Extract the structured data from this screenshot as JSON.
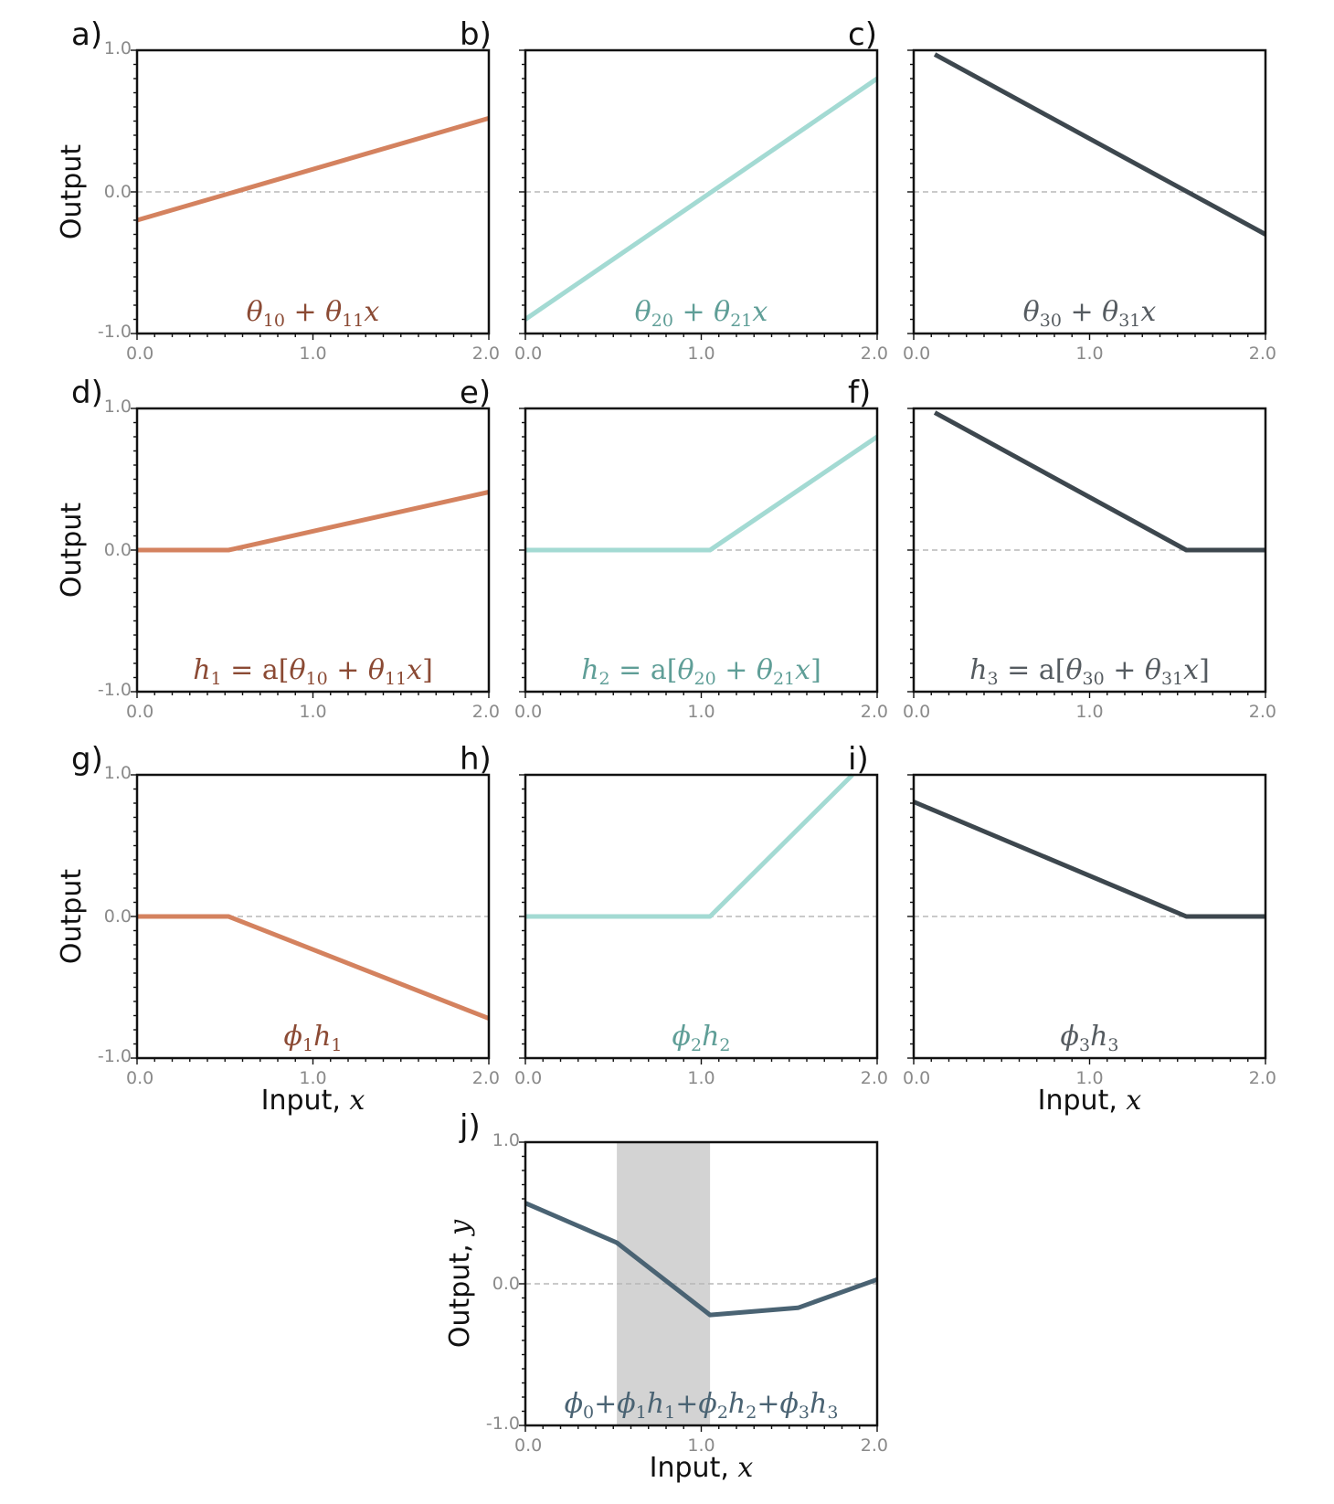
{
  "chart_data": [
    {
      "id": "a",
      "type": "line",
      "letter": "a)",
      "ylabel": "Output",
      "xlabel": "",
      "color": "#d4825f",
      "label_color": "#8b4a34",
      "formula": [
        {
          "t": "θ",
          "i": true
        },
        {
          "t": "10",
          "sub": true
        },
        {
          "t": " + ",
          "i": false
        },
        {
          "t": "θ",
          "i": true
        },
        {
          "t": "11",
          "sub": true
        },
        {
          "t": "x",
          "i": true
        }
      ],
      "x": [
        0,
        2
      ],
      "y": [
        -0.2,
        0.52
      ],
      "xlim": [
        0,
        2
      ],
      "ylim": [
        -1,
        1
      ],
      "xticklabels": [
        "0.0",
        "1.0",
        "2.0"
      ],
      "yticklabels": [
        "-1.0",
        "0.0",
        "1.0"
      ],
      "shade": null
    },
    {
      "id": "b",
      "type": "line",
      "letter": "b)",
      "ylabel": "",
      "xlabel": "",
      "color": "#a3dad3",
      "label_color": "#5f9e97",
      "formula": [
        {
          "t": "θ",
          "i": true
        },
        {
          "t": "20",
          "sub": true
        },
        {
          "t": " + ",
          "i": false
        },
        {
          "t": "θ",
          "i": true
        },
        {
          "t": "21",
          "sub": true
        },
        {
          "t": "x",
          "i": true
        }
      ],
      "x": [
        0,
        2
      ],
      "y": [
        -0.9,
        0.8
      ],
      "xlim": [
        0,
        2
      ],
      "ylim": [
        -1,
        1
      ],
      "xticklabels": [
        "0.0",
        "1.0",
        "2.0"
      ],
      "yticklabels": [],
      "shade": null
    },
    {
      "id": "c",
      "type": "line",
      "letter": "c)",
      "ylabel": "",
      "xlabel": "",
      "color": "#3d474e",
      "label_color": "#555b60",
      "formula": [
        {
          "t": "θ",
          "i": true
        },
        {
          "t": "30",
          "sub": true
        },
        {
          "t": " + ",
          "i": false
        },
        {
          "t": "θ",
          "i": true
        },
        {
          "t": "31",
          "sub": true
        },
        {
          "t": "x",
          "i": true
        }
      ],
      "x": [
        0.12,
        2
      ],
      "y": [
        0.97,
        -0.3
      ],
      "xlim": [
        0,
        2
      ],
      "ylim": [
        -1,
        1
      ],
      "xticklabels": [
        "0.0",
        "1.0",
        "2.0"
      ],
      "yticklabels": [],
      "shade": null
    },
    {
      "id": "d",
      "type": "line",
      "letter": "d)",
      "ylabel": "Output",
      "xlabel": "",
      "color": "#d4825f",
      "label_color": "#8b4a34",
      "formula": [
        {
          "t": "h",
          "i": true
        },
        {
          "t": "1",
          "sub": true
        },
        {
          "t": " = ",
          "i": false
        },
        {
          "t": "a[",
          "r": true
        },
        {
          "t": "θ",
          "i": true
        },
        {
          "t": "10",
          "sub": true
        },
        {
          "t": " + ",
          "i": false
        },
        {
          "t": "θ",
          "i": true
        },
        {
          "t": "11",
          "sub": true
        },
        {
          "t": "x",
          "i": true
        },
        {
          "t": "]",
          "r": true
        }
      ],
      "x": [
        0,
        0.52,
        2
      ],
      "y": [
        0,
        0,
        0.41
      ],
      "xlim": [
        0,
        2
      ],
      "ylim": [
        -1,
        1
      ],
      "xticklabels": [
        "0.0",
        "1.0",
        "2.0"
      ],
      "yticklabels": [
        "-1.0",
        "0.0",
        "1.0"
      ],
      "shade": null
    },
    {
      "id": "e",
      "type": "line",
      "letter": "e)",
      "ylabel": "",
      "xlabel": "",
      "color": "#a3dad3",
      "label_color": "#5f9e97",
      "formula": [
        {
          "t": "h",
          "i": true
        },
        {
          "t": "2",
          "sub": true
        },
        {
          "t": " = ",
          "i": false
        },
        {
          "t": "a[",
          "r": true
        },
        {
          "t": "θ",
          "i": true
        },
        {
          "t": "20",
          "sub": true
        },
        {
          "t": " + ",
          "i": false
        },
        {
          "t": "θ",
          "i": true
        },
        {
          "t": "21",
          "sub": true
        },
        {
          "t": "x",
          "i": true
        },
        {
          "t": "]",
          "r": true
        }
      ],
      "x": [
        0,
        1.05,
        2
      ],
      "y": [
        0,
        0,
        0.8
      ],
      "xlim": [
        0,
        2
      ],
      "ylim": [
        -1,
        1
      ],
      "xticklabels": [
        "0.0",
        "1.0",
        "2.0"
      ],
      "yticklabels": [],
      "shade": null
    },
    {
      "id": "f",
      "type": "line",
      "letter": "f)",
      "ylabel": "",
      "xlabel": "",
      "color": "#3d474e",
      "label_color": "#555b60",
      "formula": [
        {
          "t": "h",
          "i": true
        },
        {
          "t": "3",
          "sub": true
        },
        {
          "t": " = ",
          "i": false
        },
        {
          "t": "a[",
          "r": true
        },
        {
          "t": "θ",
          "i": true
        },
        {
          "t": "30",
          "sub": true
        },
        {
          "t": " + ",
          "i": false
        },
        {
          "t": "θ",
          "i": true
        },
        {
          "t": "31",
          "sub": true
        },
        {
          "t": "x",
          "i": true
        },
        {
          "t": "]",
          "r": true
        }
      ],
      "x": [
        0.12,
        1.55,
        2
      ],
      "y": [
        0.97,
        0,
        0
      ],
      "xlim": [
        0,
        2
      ],
      "ylim": [
        -1,
        1
      ],
      "xticklabels": [
        "0.0",
        "1.0",
        "2.0"
      ],
      "yticklabels": [],
      "shade": null
    },
    {
      "id": "g",
      "type": "line",
      "letter": "g)",
      "ylabel": "Output",
      "xlabel": "Input, ",
      "xlabel_var": "x",
      "color": "#d4825f",
      "label_color": "#8b4a34",
      "formula": [
        {
          "t": "ϕ",
          "i": true
        },
        {
          "t": "1",
          "sub": true
        },
        {
          "t": "h",
          "i": true
        },
        {
          "t": "1",
          "sub": true
        }
      ],
      "x": [
        0,
        0.52,
        2
      ],
      "y": [
        0,
        0,
        -0.72
      ],
      "xlim": [
        0,
        2
      ],
      "ylim": [
        -1,
        1
      ],
      "xticklabels": [
        "0.0",
        "1.0",
        "2.0"
      ],
      "yticklabels": [
        "-1.0",
        "0.0",
        "1.0"
      ],
      "shade": null
    },
    {
      "id": "h",
      "type": "line",
      "letter": "h)",
      "ylabel": "",
      "xlabel": "",
      "color": "#a3dad3",
      "label_color": "#5f9e97",
      "formula": [
        {
          "t": "ϕ",
          "i": true
        },
        {
          "t": "2",
          "sub": true
        },
        {
          "t": "h",
          "i": true
        },
        {
          "t": "2",
          "sub": true
        }
      ],
      "x": [
        0,
        1.05,
        1.86
      ],
      "y": [
        0,
        0,
        1.0
      ],
      "xlim": [
        0,
        2
      ],
      "ylim": [
        -1,
        1
      ],
      "xticklabels": [
        "0.0",
        "1.0",
        "2.0"
      ],
      "yticklabels": [],
      "shade": null
    },
    {
      "id": "i",
      "type": "line",
      "letter": "i)",
      "ylabel": "",
      "xlabel": "Input, ",
      "xlabel_var": "x",
      "color": "#3d474e",
      "label_color": "#555b60",
      "formula": [
        {
          "t": "ϕ",
          "i": true
        },
        {
          "t": "3",
          "sub": true
        },
        {
          "t": "h",
          "i": true
        },
        {
          "t": "3",
          "sub": true
        }
      ],
      "x": [
        0,
        1.55,
        2
      ],
      "y": [
        0.81,
        0,
        0
      ],
      "xlim": [
        0,
        2
      ],
      "ylim": [
        -1,
        1
      ],
      "xticklabels": [
        "0.0",
        "1.0",
        "2.0"
      ],
      "yticklabels": [],
      "shade": null
    },
    {
      "id": "j",
      "type": "line",
      "letter": "j)",
      "ylabel": "Output, ",
      "ylabel_var": "y",
      "xlabel": "Input, ",
      "xlabel_var": "x",
      "color": "#4a6373",
      "label_color": "#4a6373",
      "formula": [
        {
          "t": "ϕ",
          "i": true
        },
        {
          "t": "0",
          "sub": true
        },
        {
          "t": "+",
          "i": false
        },
        {
          "t": "ϕ",
          "i": true
        },
        {
          "t": "1",
          "sub": true
        },
        {
          "t": "h",
          "i": true
        },
        {
          "t": "1",
          "sub": true
        },
        {
          "t": "+",
          "i": false
        },
        {
          "t": "ϕ",
          "i": true
        },
        {
          "t": "2",
          "sub": true
        },
        {
          "t": "h",
          "i": true
        },
        {
          "t": "2",
          "sub": true
        },
        {
          "t": "+",
          "i": false
        },
        {
          "t": "ϕ",
          "i": true
        },
        {
          "t": "3",
          "sub": true
        },
        {
          "t": "h",
          "i": true
        },
        {
          "t": "3",
          "sub": true
        }
      ],
      "x": [
        0,
        0.52,
        1.05,
        1.55,
        2
      ],
      "y": [
        0.57,
        0.29,
        -0.22,
        -0.17,
        0.03
      ],
      "xlim": [
        0,
        2
      ],
      "ylim": [
        -1,
        1
      ],
      "xticklabels": [
        "0.0",
        "1.0",
        "2.0"
      ],
      "yticklabels": [
        "-1.0",
        "0.0",
        "1.0"
      ],
      "shade": [
        0.52,
        1.05
      ],
      "shade_color": "#d3d3d3"
    }
  ]
}
